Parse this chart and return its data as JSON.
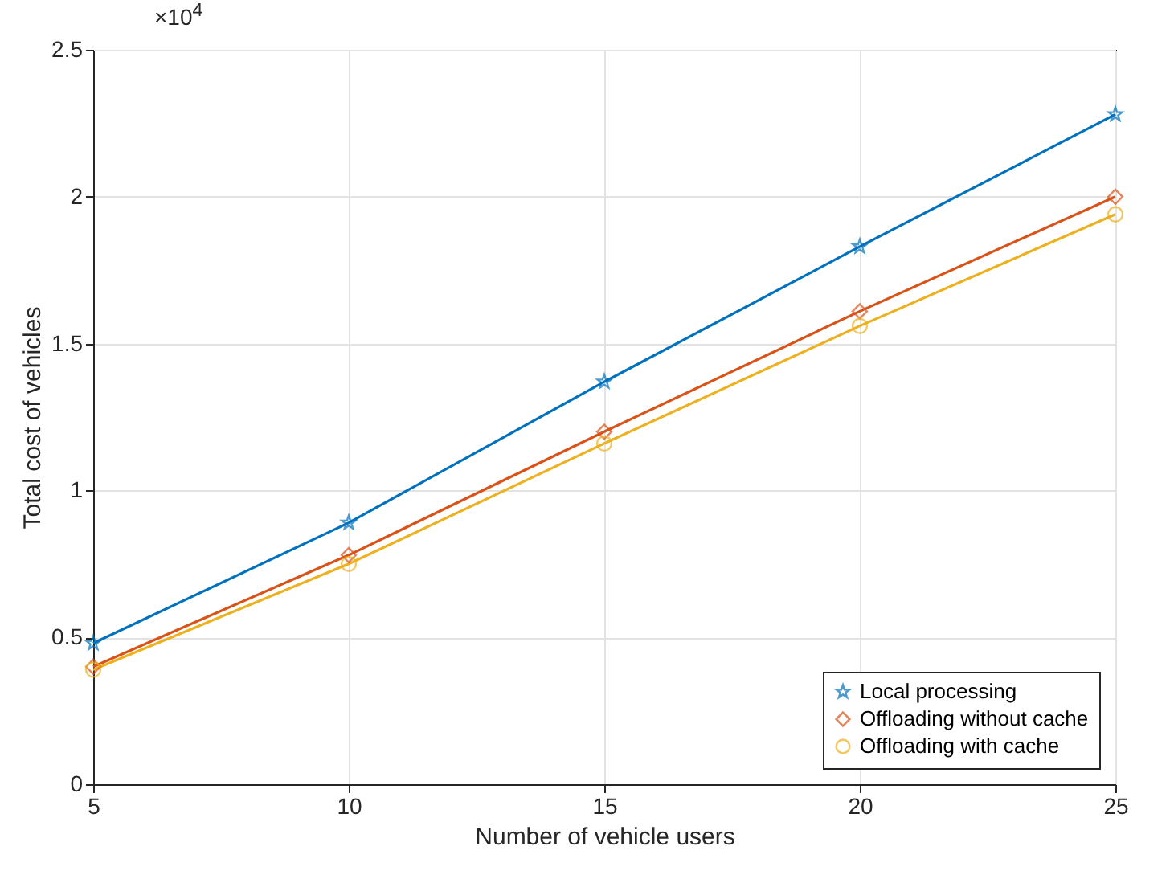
{
  "chart_data": {
    "type": "line",
    "xlabel": "Number of vehicle users",
    "ylabel": "Total cost of vehicles",
    "annotations": [
      "×10$^{4}$"
    ],
    "x": [
      5,
      10,
      15,
      20,
      25
    ],
    "series": [
      {
        "name": "Local processing",
        "color": "#0072bd",
        "marker": "star",
        "values": [
          0.48,
          0.89,
          1.37,
          1.83,
          2.28
        ]
      },
      {
        "name": "Offloading without cache",
        "color": "#d95319",
        "marker": "diamond",
        "values": [
          0.4,
          0.78,
          1.2,
          1.61,
          2.0
        ]
      },
      {
        "name": "Offloading with cache",
        "color": "#edb120",
        "marker": "circle",
        "values": [
          0.39,
          0.75,
          1.16,
          1.56,
          1.94
        ]
      }
    ],
    "xlim": [
      5,
      25
    ],
    "xticks": [
      5,
      10,
      15,
      20,
      25
    ],
    "ylim": [
      0,
      2.5
    ],
    "yticks": [
      0,
      0.5,
      1,
      1.5,
      2,
      2.5
    ],
    "grid": true,
    "legend": "bottom right",
    "line_style": "solid"
  }
}
